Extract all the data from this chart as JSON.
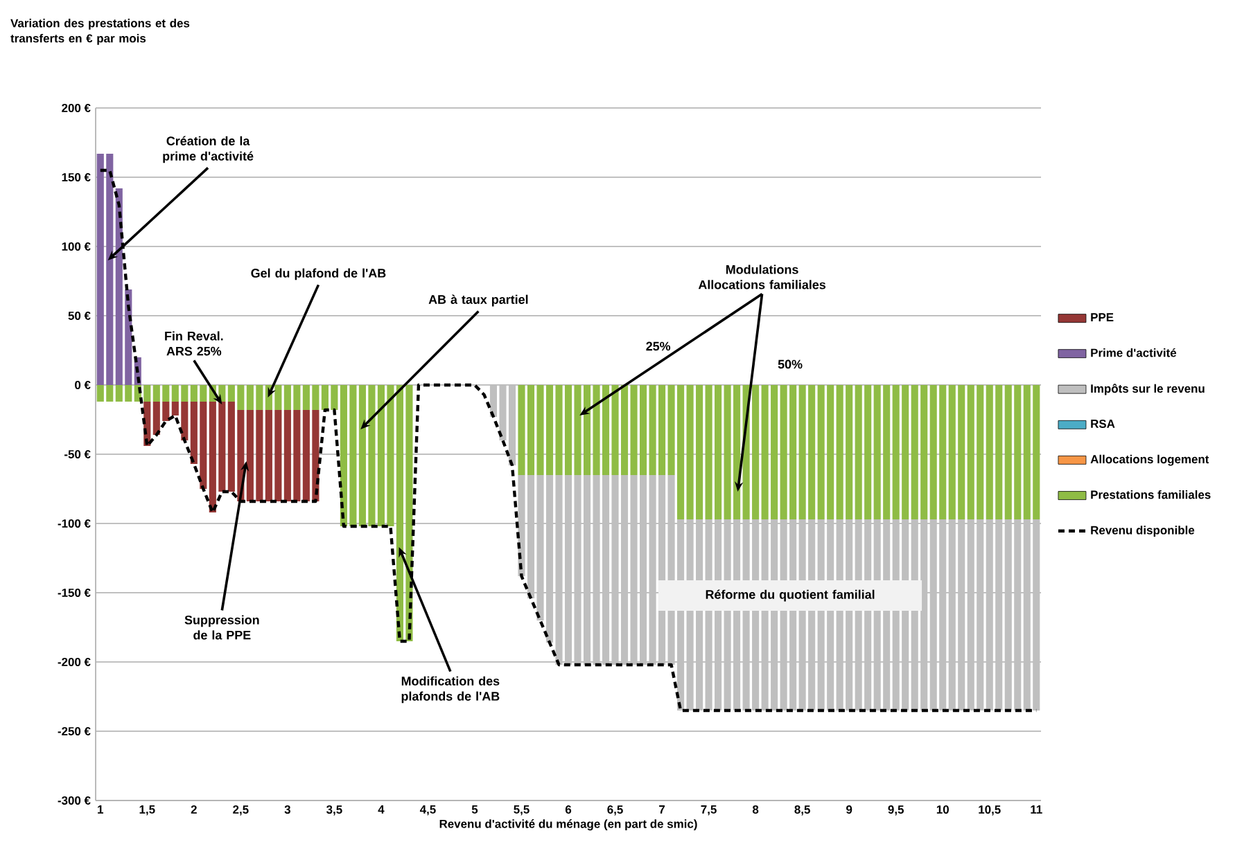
{
  "chart_data": {
    "type": "bar",
    "stacked": true,
    "xlabel": "Revenu d'activité du ménage (en part de smic)",
    "x": [
      1.0,
      1.1,
      1.2,
      1.3,
      1.4,
      1.5,
      1.6,
      1.7,
      1.8,
      1.9,
      2.0,
      2.1,
      2.2,
      2.3,
      2.4,
      2.5,
      2.6,
      2.7,
      2.8,
      2.9,
      3.0,
      3.1,
      3.2,
      3.3,
      3.4,
      3.5,
      3.6,
      3.7,
      3.8,
      3.9,
      4.0,
      4.1,
      4.2,
      4.3,
      4.4,
      4.5,
      4.6,
      4.7,
      4.8,
      4.9,
      5.0,
      5.1,
      5.2,
      5.3,
      5.4,
      5.5,
      5.6,
      5.7,
      5.8,
      5.9,
      6.0,
      6.1,
      6.2,
      6.3,
      6.4,
      6.5,
      6.6,
      6.7,
      6.8,
      6.9,
      7.0,
      7.1,
      7.2,
      7.3,
      7.4,
      7.5,
      7.6,
      7.7,
      7.8,
      7.9,
      8.0,
      8.1,
      8.2,
      8.3,
      8.4,
      8.5,
      8.6,
      8.7,
      8.8,
      8.9,
      9.0,
      9.1,
      9.2,
      9.3,
      9.4,
      9.5,
      9.6,
      9.7,
      9.8,
      9.9,
      10.0,
      10.1,
      10.2,
      10.3,
      10.4,
      10.5,
      10.6,
      10.7,
      10.8,
      10.9,
      11.0
    ],
    "series": [
      {
        "name": "Prestations familiales",
        "color": "#8fbc45",
        "values": [
          -12,
          -12,
          -12,
          -12,
          -12,
          -12,
          -12,
          -12,
          -12,
          -12,
          -12,
          -12,
          -12,
          -12,
          -12,
          -18,
          -18,
          -18,
          -18,
          -18,
          -18,
          -18,
          -18,
          -18,
          -18,
          -18,
          -102,
          -102,
          -102,
          -102,
          -102,
          -102,
          -185,
          -185,
          null,
          null,
          null,
          null,
          null,
          null,
          null,
          null,
          null,
          null,
          null,
          -65,
          -65,
          -65,
          -65,
          -65,
          -65,
          -65,
          -65,
          -65,
          -65,
          -65,
          -65,
          -65,
          -65,
          -65,
          -65,
          -65,
          -97,
          -97,
          -97,
          -97,
          -97,
          -97,
          -97,
          -97,
          -97,
          -97,
          -97,
          -97,
          -97,
          -97,
          -97,
          -97,
          -97,
          -97,
          -97,
          -97,
          -97,
          -97,
          -97,
          -97,
          -97,
          -97,
          -97,
          -97,
          -97,
          -97,
          -97,
          -97,
          -97,
          -97,
          -97,
          -97,
          -97,
          -97,
          -97
        ]
      },
      {
        "name": "Allocations logement",
        "color": "#f79646",
        "values": [
          null,
          null,
          null,
          null,
          null,
          null,
          null,
          null,
          null,
          null,
          null,
          null,
          null,
          null,
          null,
          null,
          null,
          null,
          null,
          null,
          null,
          null,
          null,
          null,
          null,
          null,
          null,
          null,
          null,
          null,
          null,
          null,
          null,
          null,
          null,
          null,
          null,
          null,
          null,
          null,
          null,
          null,
          null,
          null,
          null,
          null,
          null,
          null,
          null,
          null,
          null,
          null,
          null,
          null,
          null,
          null,
          null,
          null,
          null,
          null,
          null,
          null,
          null,
          null,
          null,
          null,
          null,
          null,
          null,
          null,
          null,
          null,
          null,
          null,
          null,
          null,
          null,
          null,
          null,
          null,
          null,
          null,
          null,
          null,
          null,
          null,
          null,
          null,
          null,
          null,
          null,
          null,
          null,
          null,
          null,
          null,
          null,
          null,
          null,
          null,
          null
        ]
      },
      {
        "name": "RSA",
        "color": "#4bacc6",
        "values": [
          null,
          null,
          null,
          null,
          null,
          null,
          null,
          null,
          null,
          null,
          null,
          null,
          null,
          null,
          null,
          null,
          null,
          null,
          null,
          null,
          null,
          null,
          null,
          null,
          null,
          null,
          null,
          null,
          null,
          null,
          null,
          null,
          null,
          null,
          null,
          null,
          null,
          null,
          null,
          null,
          null,
          null,
          null,
          null,
          null,
          null,
          null,
          null,
          null,
          null,
          null,
          null,
          null,
          null,
          null,
          null,
          null,
          null,
          null,
          null,
          null,
          null,
          null,
          null,
          null,
          null,
          null,
          null,
          null,
          null,
          null,
          null,
          null,
          null,
          null,
          null,
          null,
          null,
          null,
          null,
          null,
          null,
          null,
          null,
          null,
          null,
          null,
          null,
          null,
          null,
          null,
          null,
          null,
          null,
          null,
          null,
          null,
          null,
          null,
          null,
          null
        ]
      },
      {
        "name": "Impôts sur le revenu",
        "color": "#bfbfbf",
        "values": [
          null,
          null,
          null,
          null,
          null,
          null,
          null,
          null,
          null,
          null,
          null,
          null,
          null,
          null,
          null,
          null,
          null,
          null,
          null,
          null,
          null,
          null,
          null,
          null,
          null,
          null,
          null,
          null,
          null,
          null,
          null,
          null,
          null,
          null,
          null,
          null,
          null,
          null,
          null,
          null,
          null,
          null,
          -23,
          -40,
          -58,
          -73,
          -89,
          -105,
          -121,
          -137,
          -137,
          -137,
          -137,
          -137,
          -137,
          -137,
          -137,
          -137,
          -137,
          -137,
          -137,
          -137,
          -138,
          -138,
          -138,
          -138,
          -138,
          -138,
          -138,
          -138,
          -138,
          -138,
          -138,
          -138,
          -138,
          -138,
          -138,
          -138,
          -138,
          -138,
          -138,
          -138,
          -138,
          -138,
          -138,
          -138,
          -138,
          -138,
          -138,
          -138,
          -138,
          -138,
          -138,
          -138,
          -138,
          -138,
          -138,
          -138,
          -138,
          -138,
          -138
        ]
      },
      {
        "name": "Prime d'activité",
        "color": "#8064a2",
        "values": [
          167,
          167,
          142,
          69,
          20,
          null,
          null,
          null,
          null,
          null,
          null,
          null,
          null,
          null,
          null,
          null,
          null,
          null,
          null,
          null,
          null,
          null,
          null,
          null,
          null,
          null,
          null,
          null,
          null,
          null,
          null,
          null,
          null,
          null,
          null,
          null,
          null,
          null,
          null,
          null,
          null,
          null,
          null,
          null,
          null,
          null,
          null,
          null,
          null,
          null,
          null,
          null,
          null,
          null,
          null,
          null,
          null,
          null,
          null,
          null,
          null,
          null,
          null,
          null,
          null,
          null,
          null,
          null,
          null,
          null,
          null,
          null,
          null,
          null,
          null,
          null,
          null,
          null,
          null,
          null,
          null,
          null,
          null,
          null,
          null,
          null,
          null,
          null,
          null,
          null,
          null,
          null,
          null,
          null,
          null,
          null,
          null,
          null,
          null,
          null,
          null
        ]
      },
      {
        "name": "PPE",
        "color": "#953735",
        "values": [
          null,
          null,
          null,
          null,
          null,
          -32,
          -24,
          -14,
          -10,
          -28,
          -45,
          -63,
          -80,
          -65,
          -65,
          -66,
          -66,
          -66,
          -66,
          -66,
          -66,
          -66,
          -66,
          -66,
          null,
          null,
          null,
          null,
          null,
          null,
          null,
          null,
          null,
          null,
          null,
          null,
          null,
          null,
          null,
          null,
          null,
          null,
          null,
          null,
          null,
          null,
          null,
          null,
          null,
          null,
          null,
          null,
          null,
          null,
          null,
          null,
          null,
          null,
          null,
          null,
          null,
          null,
          null,
          null,
          null,
          null,
          null,
          null,
          null,
          null,
          null,
          null,
          null,
          null,
          null,
          null,
          null,
          null,
          null,
          null,
          null,
          null,
          null,
          null,
          null,
          null,
          null,
          null,
          null,
          null,
          null,
          null,
          null,
          null,
          null,
          null,
          null,
          null,
          null,
          null,
          null
        ]
      },
      {
        "name": "Revenu disponible",
        "type": "line",
        "color": "#000000",
        "line_style": "dashed",
        "values": [
          155,
          155,
          130,
          57,
          8,
          -44,
          -36,
          -26,
          -22,
          -40,
          -57,
          -75,
          -92,
          -77,
          -77,
          -84,
          -84,
          -84,
          -84,
          -84,
          -84,
          -84,
          -84,
          -84,
          -18,
          -18,
          -102,
          -102,
          -102,
          -102,
          -102,
          -102,
          -185,
          -185,
          0,
          0,
          0,
          0,
          0,
          0,
          0,
          -7,
          -23,
          -40,
          -58,
          -138,
          -154,
          -170,
          -186,
          -202,
          -202,
          -202,
          -202,
          -202,
          -202,
          -202,
          -202,
          -202,
          -202,
          -202,
          -202,
          -202,
          -235,
          -235,
          -235,
          -235,
          -235,
          -235,
          -235,
          -235,
          -235,
          -235,
          -235,
          -235,
          -235,
          -235,
          -235,
          -235,
          -235,
          -235,
          -235,
          -235,
          -235,
          -235,
          -235,
          -235,
          -235,
          -235,
          -235,
          -235,
          -235,
          -235,
          -235,
          -235,
          -235,
          -235,
          -235,
          -235,
          -235,
          -235,
          -235
        ]
      }
    ],
    "xlim": [
      0.95,
      11.05
    ],
    "ylim": [
      -300,
      200
    ],
    "xticks": [
      1,
      {
        "value": 1.5,
        "label": "1,5"
      },
      2,
      {
        "value": 2.5,
        "label": "2,5"
      },
      3,
      {
        "value": 3.5,
        "label": "3,5"
      },
      4,
      {
        "value": 4.5,
        "label": "4,5"
      },
      5,
      {
        "value": 5.5,
        "label": "5,5"
      },
      6,
      {
        "value": 6.5,
        "label": "6,5"
      },
      7,
      {
        "value": 7.5,
        "label": "7,5"
      },
      8,
      {
        "value": 8.5,
        "label": "8,5"
      },
      9,
      {
        "value": 9.5,
        "label": "9,5"
      },
      10,
      {
        "value": 10.5,
        "label": "10,5"
      },
      11
    ],
    "yticks": [
      {
        "value": -300,
        "label": "-300 €"
      },
      {
        "value": -250,
        "label": "-250 €"
      },
      {
        "value": -200,
        "label": "-200 €"
      },
      {
        "value": -150,
        "label": "-150 €"
      },
      {
        "value": -100,
        "label": "-100 €"
      },
      {
        "value": -50,
        "label": "-50 €"
      },
      {
        "value": 0,
        "label": "0 €"
      },
      {
        "value": 50,
        "label": "50 €"
      },
      {
        "value": 100,
        "label": "100 €"
      },
      {
        "value": 150,
        "label": "150 €"
      },
      {
        "value": 200,
        "label": "200 €"
      }
    ],
    "grid": "y",
    "legend": "right",
    "annotations": [
      {
        "text": "Création de la prime d'activité",
        "x": 1.08,
        "y": 90
      },
      {
        "text": "Fin Reval. ARS 25%",
        "x": 2.3,
        "y": -14
      },
      {
        "text": "Suppression de la PPE",
        "x": 2.56,
        "y": -55
      },
      {
        "text": "Gel du plafond de l'AB",
        "x": 2.79,
        "y": -9
      },
      {
        "text": "AB à taux partiel",
        "x": 3.78,
        "y": -32
      },
      {
        "text": "Modification des plafonds de l'AB",
        "x": 4.19,
        "y": -117
      },
      {
        "text": "Modulations Allocations familiales",
        "x": 6.12,
        "y": -22
      },
      "25%",
      "50%",
      "Réforme du quotient familial",
      "Variation des prestations et des transferts en € par mois"
    ]
  }
}
